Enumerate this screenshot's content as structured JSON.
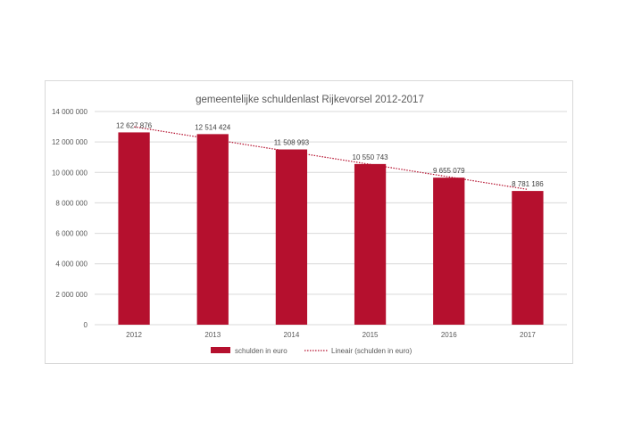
{
  "chart_data": {
    "type": "bar",
    "title": "gemeentelijke schuldenlast  Rijkevorsel 2012-2017",
    "categories": [
      "2012",
      "2013",
      "2014",
      "2015",
      "2016",
      "2017"
    ],
    "series": [
      {
        "name": "schulden in euro",
        "values": [
          12627876,
          12514424,
          11508993,
          10550743,
          9655079,
          8781186
        ],
        "data_labels": [
          "12 627 876",
          "12 514 424",
          "11 508 993",
          "10 550 743",
          "9 655 079",
          "8 781 186"
        ],
        "color": "#b5102e"
      }
    ],
    "trendline": {
      "name": "Lineair (schulden in euro)",
      "type": "linear",
      "color": "#b5102e",
      "style": "dotted"
    },
    "ylim": [
      0,
      14000000
    ],
    "yticks": [
      0,
      2000000,
      4000000,
      6000000,
      8000000,
      10000000,
      12000000,
      14000000
    ],
    "ytick_labels": [
      "0",
      "2 000 000",
      "4 000 000",
      "6 000 000",
      "8 000 000",
      "10 000 000",
      "12 000 000",
      "14 000 000"
    ],
    "xlabel": "",
    "ylabel": "",
    "grid": true,
    "legend_position": "bottom"
  }
}
